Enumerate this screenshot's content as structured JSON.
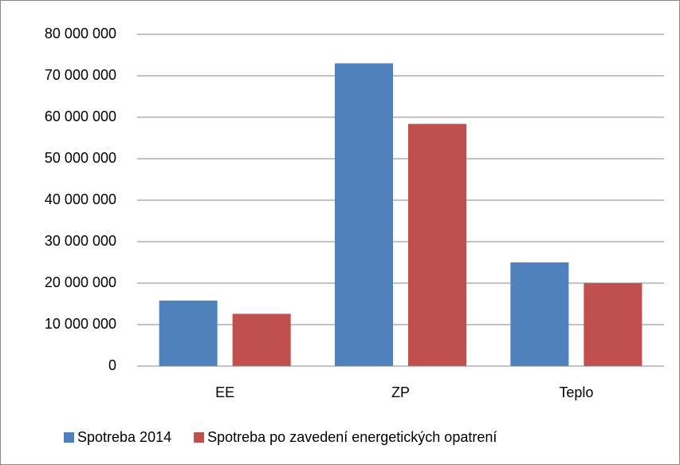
{
  "chart_data": {
    "type": "bar",
    "categories": [
      "EE",
      "ZP",
      "Teplo"
    ],
    "series": [
      {
        "name": "Spotreba 2014",
        "color": "#4f81bd",
        "values": [
          15800000,
          73000000,
          25000000
        ]
      },
      {
        "name": "Spotreba po zavedení energetických opatrení",
        "color": "#c0504d",
        "values": [
          12600000,
          58400000,
          20000000
        ]
      }
    ],
    "ylim": [
      0,
      80000000
    ],
    "yticks": [
      0,
      {
        "value": 10000000,
        "label": "10 000 000"
      },
      {
        "value": 20000000,
        "label": "20 000 000"
      },
      {
        "value": 30000000,
        "label": "30 000 000"
      },
      {
        "value": 40000000,
        "label": "40 000 000"
      },
      {
        "value": 50000000,
        "label": "50 000 000"
      },
      {
        "value": 60000000,
        "label": "60 000 000"
      },
      {
        "value": 70000000,
        "label": "70 000 000"
      },
      {
        "value": 80000000,
        "label": "80 000 000"
      }
    ],
    "grid": true,
    "legend": "bottom"
  }
}
